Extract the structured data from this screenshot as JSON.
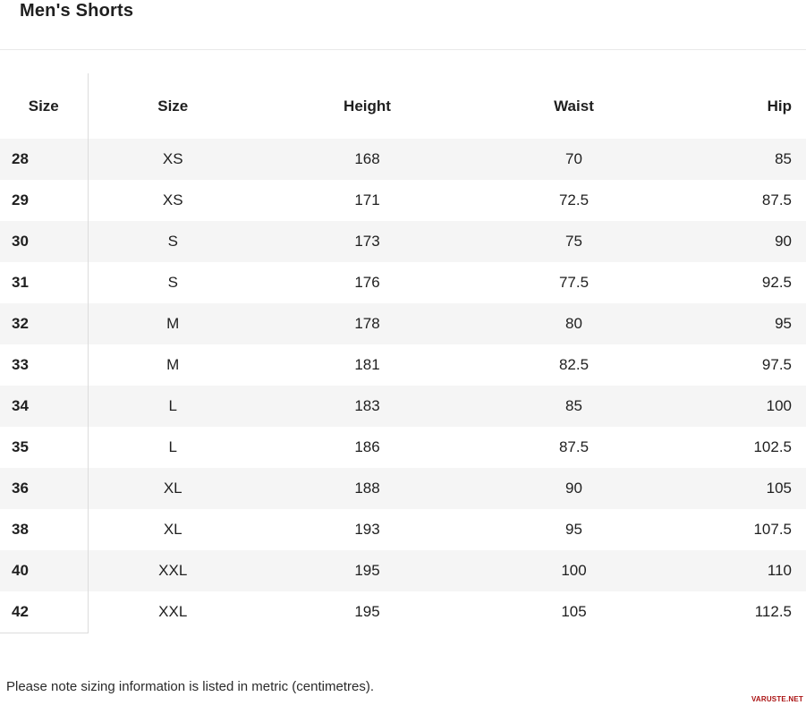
{
  "page": {
    "title": "Men's Shorts",
    "note": "Please note sizing information is listed in metric (centimetres).",
    "watermark": "VARUSTE.NET"
  },
  "table": {
    "columns": [
      "Size",
      "Size",
      "Height",
      "Waist",
      "Hip"
    ],
    "rows": [
      [
        "28",
        "XS",
        "168",
        "70",
        "85"
      ],
      [
        "29",
        "XS",
        "171",
        "72.5",
        "87.5"
      ],
      [
        "30",
        "S",
        "173",
        "75",
        "90"
      ],
      [
        "31",
        "S",
        "176",
        "77.5",
        "92.5"
      ],
      [
        "32",
        "M",
        "178",
        "80",
        "95"
      ],
      [
        "33",
        "M",
        "181",
        "82.5",
        "97.5"
      ],
      [
        "34",
        "L",
        "183",
        "85",
        "100"
      ],
      [
        "35",
        "L",
        "186",
        "87.5",
        "102.5"
      ],
      [
        "36",
        "XL",
        "188",
        "90",
        "105"
      ],
      [
        "38",
        "XL",
        "193",
        "95",
        "107.5"
      ],
      [
        "40",
        "XXL",
        "195",
        "100",
        "110"
      ],
      [
        "42",
        "XXL",
        "195",
        "105",
        "112.5"
      ]
    ]
  },
  "colors": {
    "text": "#1f1f1f",
    "stripe": "#f5f5f5",
    "divider": "#dcdcdc",
    "rule": "#e8e8e8",
    "watermark_red": "#aa1111",
    "background": "#ffffff"
  }
}
